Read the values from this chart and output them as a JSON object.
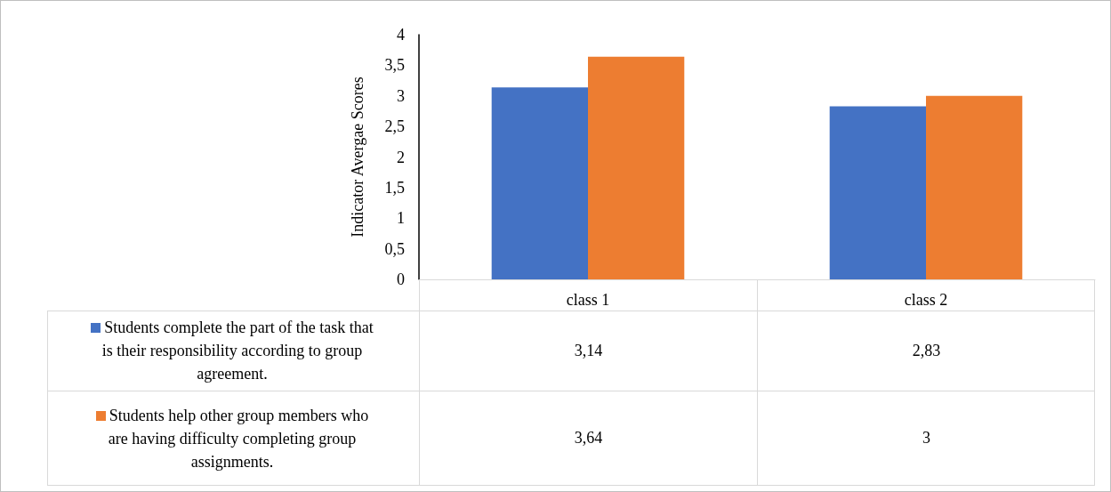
{
  "chart_data": {
    "type": "bar",
    "ylabel": "Indicator Avergae Scores",
    "categories": [
      "class 1",
      "class 2"
    ],
    "series": [
      {
        "name": "Students complete the part of the task that is their responsibility according to group agreement.",
        "color": "#4472c4",
        "values": [
          3.14,
          2.83
        ],
        "value_labels": [
          "3,14",
          "2,83"
        ]
      },
      {
        "name": "Students help other group members who are having difficulty completing group assignments.",
        "color": "#ed7d31",
        "values": [
          3.64,
          3
        ],
        "value_labels": [
          "3,64",
          "3"
        ]
      }
    ],
    "ylim": [
      0,
      4
    ],
    "yticks": [
      0,
      {
        "value": 0.5,
        "label": "0,5"
      },
      1,
      {
        "value": 1.5,
        "label": "1,5"
      },
      2,
      {
        "value": 2.5,
        "label": "2,5"
      },
      3,
      {
        "value": 3.5,
        "label": "3,5"
      },
      4
    ],
    "grid": false,
    "legend": "bottom left",
    "data_labels": true
  }
}
